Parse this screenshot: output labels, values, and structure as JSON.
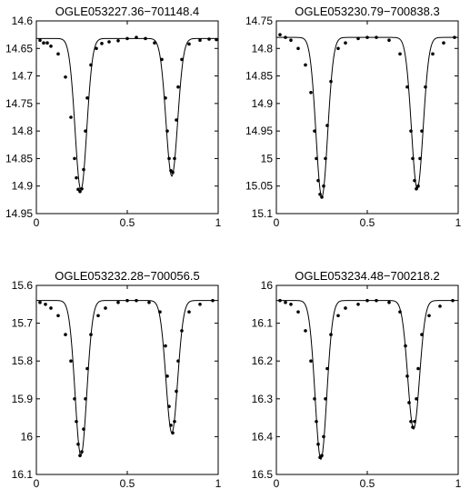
{
  "figure": {
    "background": "#ffffff",
    "axis_color": "#000000",
    "point_color": "#000000",
    "line_color": "#000000"
  },
  "chart_data": [
    {
      "type": "scatter",
      "title": "OGLE053227.36−701148.4",
      "xlim": [
        0,
        1
      ],
      "ylim": [
        14.6,
        14.95
      ],
      "y_reversed": true,
      "xticks": [
        "0",
        "0.5",
        "1"
      ],
      "yticks": [
        "14.6",
        "14.65",
        "14.7",
        "14.75",
        "14.8",
        "14.85",
        "14.9",
        "14.95"
      ],
      "model": {
        "baseline": 14.632,
        "primary": {
          "phase": 0.245,
          "depth": 0.275
        },
        "secondary": {
          "phase": 0.745,
          "depth": 0.25
        }
      },
      "x": [
        0.02,
        0.04,
        0.06,
        0.08,
        0.12,
        0.16,
        0.19,
        0.21,
        0.22,
        0.23,
        0.24,
        0.25,
        0.26,
        0.27,
        0.28,
        0.3,
        0.33,
        0.36,
        0.4,
        0.45,
        0.5,
        0.55,
        0.6,
        0.65,
        0.69,
        0.71,
        0.72,
        0.73,
        0.74,
        0.75,
        0.76,
        0.77,
        0.78,
        0.8,
        0.84,
        0.9,
        0.95,
        0.99
      ],
      "y": [
        14.635,
        14.64,
        14.64,
        14.646,
        14.66,
        14.702,
        14.775,
        14.85,
        14.885,
        14.906,
        14.91,
        14.905,
        14.87,
        14.8,
        14.74,
        14.68,
        14.65,
        14.641,
        14.638,
        14.636,
        14.632,
        14.63,
        14.632,
        14.64,
        14.67,
        14.74,
        14.8,
        14.85,
        14.872,
        14.875,
        14.85,
        14.78,
        14.72,
        14.67,
        14.642,
        14.635,
        14.633,
        14.634
      ]
    },
    {
      "type": "scatter",
      "title": "OGLE053230.79−700838.3",
      "xlim": [
        0,
        1
      ],
      "ylim": [
        14.75,
        15.1
      ],
      "y_reversed": true,
      "xticks": [
        "0",
        "0.5",
        "1"
      ],
      "yticks": [
        "14.75",
        "14.8",
        "14.85",
        "14.9",
        "14.95",
        "15",
        "15.05",
        "15.1"
      ],
      "model": {
        "baseline": 14.78,
        "primary": {
          "phase": 0.25,
          "depth": 0.29
        },
        "secondary": {
          "phase": 0.775,
          "depth": 0.275
        }
      },
      "x": [
        0.02,
        0.05,
        0.08,
        0.12,
        0.16,
        0.19,
        0.21,
        0.22,
        0.23,
        0.24,
        0.25,
        0.26,
        0.27,
        0.28,
        0.3,
        0.34,
        0.38,
        0.45,
        0.5,
        0.55,
        0.62,
        0.68,
        0.72,
        0.74,
        0.75,
        0.76,
        0.77,
        0.78,
        0.79,
        0.8,
        0.82,
        0.86,
        0.92,
        0.98
      ],
      "y": [
        14.775,
        14.78,
        14.785,
        14.8,
        14.83,
        14.88,
        14.95,
        15.0,
        15.04,
        15.065,
        15.07,
        15.05,
        15.0,
        14.94,
        14.86,
        14.8,
        14.79,
        14.782,
        14.78,
        14.78,
        14.785,
        14.81,
        14.87,
        14.95,
        15.0,
        15.04,
        15.055,
        15.05,
        15.0,
        14.95,
        14.87,
        14.81,
        14.79,
        14.78
      ]
    },
    {
      "type": "scatter",
      "title": "OGLE053232.28−700056.5",
      "xlim": [
        0,
        1
      ],
      "ylim": [
        15.6,
        16.1
      ],
      "y_reversed": true,
      "xticks": [
        "0",
        "0.5",
        "1"
      ],
      "yticks": [
        "15.6",
        "15.7",
        "15.8",
        "15.9",
        "16",
        "16.1"
      ],
      "model": {
        "baseline": 15.64,
        "primary": {
          "phase": 0.245,
          "depth": 0.41
        },
        "secondary": {
          "phase": 0.745,
          "depth": 0.35
        }
      },
      "x": [
        0.02,
        0.05,
        0.08,
        0.12,
        0.16,
        0.19,
        0.21,
        0.22,
        0.23,
        0.24,
        0.25,
        0.26,
        0.27,
        0.28,
        0.3,
        0.34,
        0.38,
        0.45,
        0.5,
        0.55,
        0.62,
        0.68,
        0.71,
        0.72,
        0.73,
        0.74,
        0.75,
        0.76,
        0.77,
        0.78,
        0.8,
        0.84,
        0.9,
        0.97
      ],
      "y": [
        15.645,
        15.65,
        15.66,
        15.68,
        15.73,
        15.8,
        15.9,
        15.96,
        16.02,
        16.05,
        16.04,
        15.98,
        15.9,
        15.82,
        15.73,
        15.68,
        15.66,
        15.645,
        15.64,
        15.64,
        15.645,
        15.67,
        15.76,
        15.84,
        15.92,
        15.97,
        15.99,
        15.96,
        15.88,
        15.8,
        15.72,
        15.67,
        15.65,
        15.64
      ]
    },
    {
      "type": "scatter",
      "title": "OGLE053234.48−700218.2",
      "xlim": [
        0,
        1
      ],
      "ylim": [
        16.0,
        16.5
      ],
      "y_reversed": true,
      "xticks": [
        "0",
        "0.5",
        "1"
      ],
      "yticks": [
        "16",
        "16.1",
        "16.2",
        "16.3",
        "16.4",
        "16.5"
      ],
      "model": {
        "baseline": 16.04,
        "primary": {
          "phase": 0.245,
          "depth": 0.42
        },
        "secondary": {
          "phase": 0.755,
          "depth": 0.34
        }
      },
      "x": [
        0.02,
        0.05,
        0.08,
        0.12,
        0.16,
        0.19,
        0.21,
        0.22,
        0.23,
        0.24,
        0.25,
        0.26,
        0.27,
        0.28,
        0.3,
        0.34,
        0.38,
        0.45,
        0.5,
        0.55,
        0.62,
        0.68,
        0.71,
        0.72,
        0.73,
        0.74,
        0.75,
        0.76,
        0.77,
        0.78,
        0.8,
        0.84,
        0.9,
        0.97
      ],
      "y": [
        16.04,
        16.045,
        16.05,
        16.07,
        16.12,
        16.2,
        16.3,
        16.36,
        16.42,
        16.455,
        16.45,
        16.4,
        16.3,
        16.22,
        16.13,
        16.08,
        16.06,
        16.05,
        16.04,
        16.04,
        16.045,
        16.07,
        16.16,
        16.24,
        16.31,
        16.36,
        16.375,
        16.36,
        16.3,
        16.22,
        16.13,
        16.08,
        16.055,
        16.04
      ]
    }
  ]
}
